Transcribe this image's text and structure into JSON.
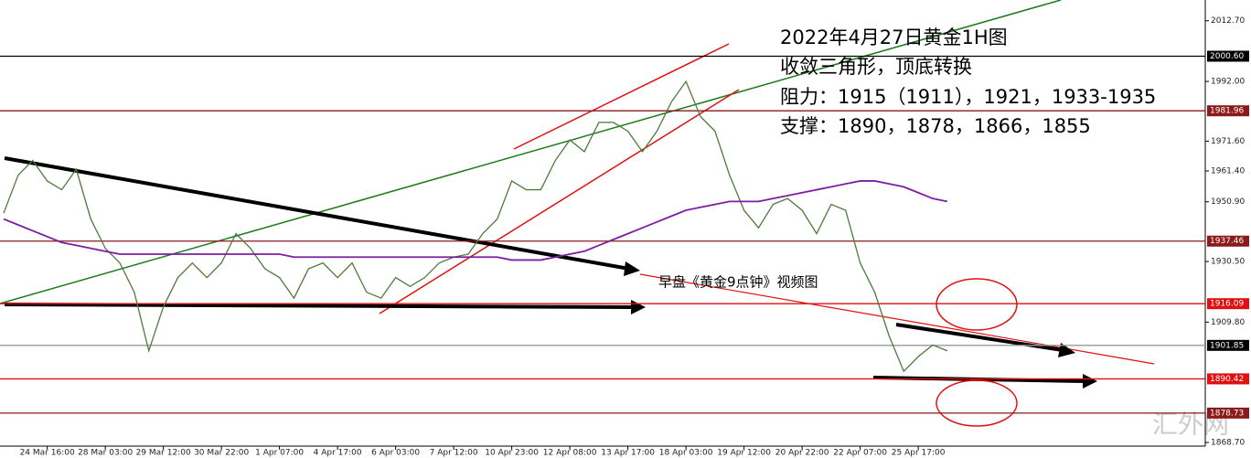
{
  "chart_data": {
    "type": "line",
    "annotations": [
      "2022年4月27日黄金1H图",
      "收敛三角形，顶底转换",
      "阻力：1915（1911），1921，1933-1935",
      "支撑：1890，1878，1866，1855"
    ],
    "note": "早盘《黄金9点钟》视频图",
    "watermark": "汇外网",
    "categories": [
      null,
      null,
      null,
      "24 Mar 16:00",
      null,
      null,
      null,
      "28 Mar 03:00",
      null,
      null,
      null,
      "29 Mar 12:00",
      null,
      null,
      null,
      "30 Mar 22:00",
      null,
      null,
      null,
      "1 Apr 07:00",
      null,
      null,
      null,
      "4 Apr 17:00",
      null,
      null,
      null,
      "6 Apr 03:00",
      null,
      null,
      null,
      "7 Apr 12:00",
      null,
      null,
      null,
      "10 Apr 23:00",
      null,
      null,
      null,
      "12 Apr 08:00",
      null,
      null,
      null,
      "13 Apr 17:00",
      null,
      null,
      null,
      "18 Apr 03:00",
      null,
      null,
      null,
      "19 Apr 12:00",
      null,
      null,
      null,
      "20 Apr 22:00",
      null,
      null,
      null,
      "22 Apr 07:00",
      null,
      null,
      null,
      "25 Apr 17:00",
      null,
      null
    ],
    "series": [
      {
        "color": "#4d7a3a",
        "values": [
          1947,
          1960,
          1965,
          1958,
          1955,
          1962,
          1945,
          1935,
          1930,
          1920,
          1900,
          1915,
          1925,
          1930,
          1925,
          1930,
          1940,
          1935,
          1928,
          1925,
          1918,
          1928,
          1930,
          1925,
          1930,
          1920,
          1918,
          1925,
          1922,
          1925,
          1930,
          1932,
          1933,
          1940,
          1945,
          1958,
          1955,
          1955,
          1965,
          1972,
          1968,
          1978,
          1978,
          1975,
          1968,
          1975,
          1985,
          1992,
          1980,
          1975,
          1960,
          1948,
          1942,
          1950,
          1952,
          1948,
          1940,
          1950,
          1948,
          1930,
          1920,
          1905,
          1893,
          1898,
          1902,
          1900
        ]
      },
      {
        "color": "#7b1fa2",
        "values": [
          1945,
          1943,
          1941,
          1939,
          1937,
          1936,
          1935,
          1934,
          1933,
          1933,
          1933,
          1933,
          1933,
          1933,
          1933,
          1933,
          1933,
          1933,
          1933,
          1933,
          1932,
          1932,
          1932,
          1932,
          1932,
          1932,
          1932,
          1932,
          1932,
          1932,
          1932,
          1932,
          1932,
          1932,
          1932,
          1931,
          1931,
          1931,
          1932,
          1933,
          1934,
          1936,
          1938,
          1940,
          1942,
          1944,
          1946,
          1948,
          1949,
          1950,
          1951,
          1951,
          1951,
          1952,
          1953,
          1954,
          1955,
          1956,
          1957,
          1958,
          1958,
          1957,
          1956,
          1954,
          1952,
          1951
        ]
      }
    ],
    "ylim": [
      1867.45,
      2019.8
    ],
    "yticks": [
      {
        "value": 2012.7,
        "label": "2012.70"
      },
      {
        "value": 1992,
        "label": "1992.00"
      },
      {
        "value": 1971.6,
        "label": "1971.60"
      },
      {
        "value": 1961.4,
        "label": "1961.40"
      },
      {
        "value": 1950.9,
        "label": "1950.90"
      },
      {
        "value": 1930.5,
        "label": "1930.50"
      },
      {
        "value": 1909.8,
        "label": "1909.80"
      },
      {
        "value": 1868.7,
        "label": "1868.70"
      }
    ],
    "levels": [
      {
        "value": 2000.6,
        "label": "2000.60",
        "color": "#000000"
      },
      {
        "value": 1981.96,
        "label": "1981.96",
        "color": "#8b1a1a"
      },
      {
        "value": 1937.46,
        "label": "1937.46",
        "color": "#8b1a1a"
      },
      {
        "value": 1916.09,
        "label": "1916.09",
        "color": "#e01010"
      },
      {
        "value": 1901.85,
        "label": "1901.85",
        "color": "#999999"
      },
      {
        "value": 1890.42,
        "label": "1890.42",
        "color": "#e01010"
      },
      {
        "value": 1878.73,
        "label": "1878.73",
        "color": "#8b1a1a"
      }
    ]
  }
}
